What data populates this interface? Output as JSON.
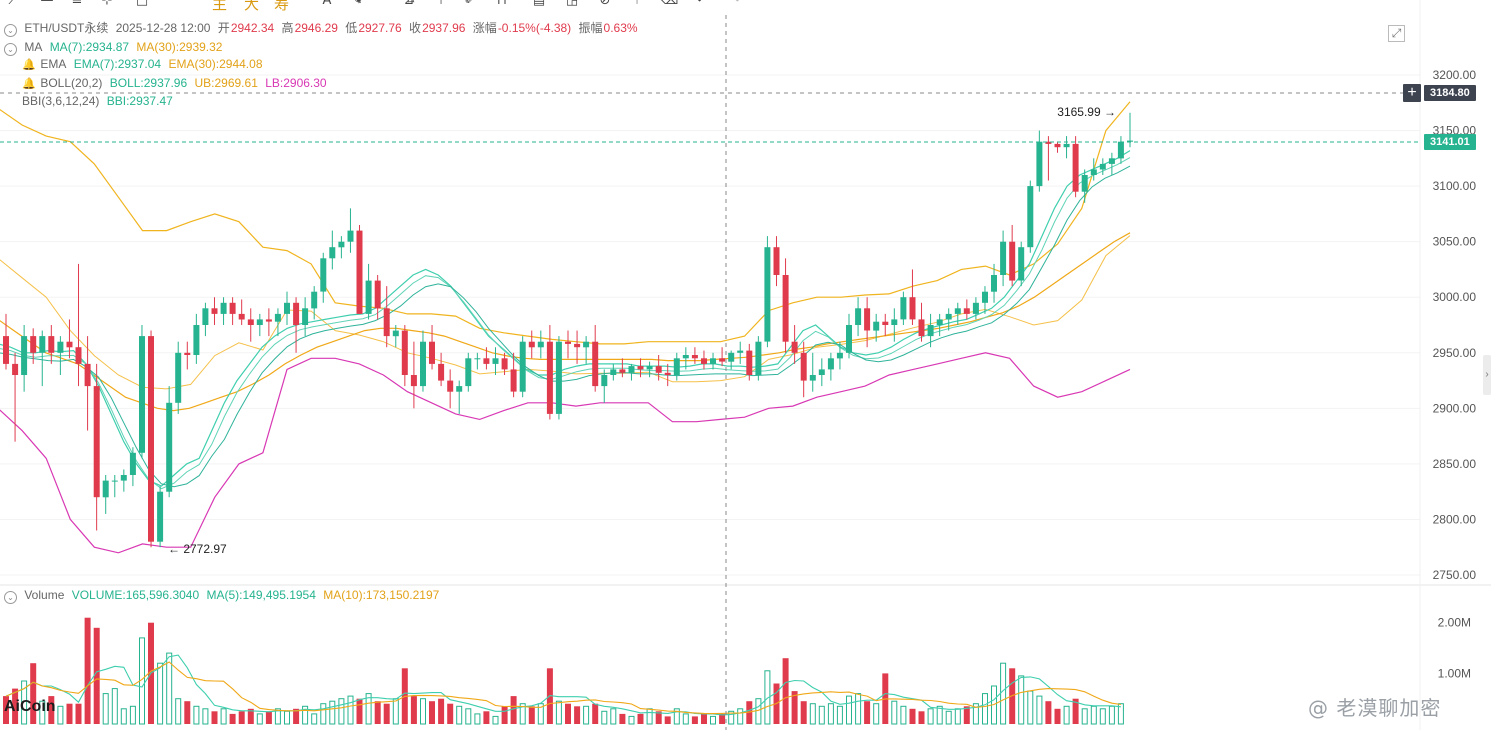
{
  "header": {
    "symbol": "ETH/USDT永续",
    "datetime": "2025-12-28 12:00",
    "open_label": "开",
    "open": "2942.34",
    "high_label": "高",
    "high": "2946.29",
    "low_label": "低",
    "low": "2927.76",
    "close_label": "收",
    "close": "2937.96",
    "change_label": "涨幅",
    "change": "-0.15%(-4.38)",
    "amplitude_label": "振幅",
    "amplitude": "0.63%"
  },
  "toolbar": {
    "icons": [
      "line-tool-icon",
      "horizontal-line-icon",
      "menu-lines-icon",
      "crosshair-icon",
      "rectangle-icon",
      "text-icon",
      "pen-icon",
      "measure-icon",
      "sparkle-icon",
      "bookmark-icon",
      "ruler-icon",
      "brush-icon",
      "magnet-icon",
      "calendar-icon",
      "chat-icon",
      "lock-icon",
      "fork-icon",
      "trash-icon",
      "undo-icon",
      "redo-icon"
    ],
    "cn_buttons": [
      "主",
      "大",
      "寿"
    ]
  },
  "indicators": {
    "ma": {
      "name": "MA",
      "v1": "MA(7):2934.87",
      "v2": "MA(30):2939.32"
    },
    "ema": {
      "name": "EMA",
      "v1": "EMA(7):2937.04",
      "v2": "EMA(30):2944.08"
    },
    "boll": {
      "name": "BOLL(20,2)",
      "v1": "BOLL:2937.96",
      "v2": "UB:2969.61",
      "v3": "LB:2906.30"
    },
    "bbi": {
      "name": "BBI(3,6,12,24)",
      "v1": "BBI:2937.47"
    }
  },
  "volume_header": {
    "name": "Volume",
    "v1": "VOLUME:165,596.3040",
    "v2": "MA(5):149,495.1954",
    "v3": "MA(10):173,150.2197"
  },
  "price_axis": {
    "ticks": [
      "3200.00",
      "3150.00",
      "3100.00",
      "3050.00",
      "3000.00",
      "2950.00",
      "2900.00",
      "2850.00",
      "2800.00",
      "2750.00"
    ],
    "crosshair_price": "3184.80",
    "last_price": "3141.01"
  },
  "volume_axis": {
    "ticks": [
      "2.00M",
      "1.00M"
    ]
  },
  "annotations": {
    "high_mark": "3165.99",
    "low_mark": "2772.97"
  },
  "logo": "AiCoin",
  "watermark": "@ 老漠聊加密",
  "colors": {
    "up": "#26b38f",
    "down": "#e03b4d",
    "ma_orange": "#f0a818",
    "boll_magenta": "#d838b4",
    "grid": "#f2f2f2"
  },
  "chart_data": {
    "type": "candlestick",
    "ylim": [
      2735,
      3222
    ],
    "vol_ylim": [
      0,
      2.35
    ],
    "candles": [
      [
        2965,
        2985,
        2935,
        2940
      ],
      [
        2940,
        2950,
        2870,
        2930
      ],
      [
        2930,
        2975,
        2915,
        2965
      ],
      [
        2965,
        2972,
        2940,
        2950
      ],
      [
        2950,
        2970,
        2920,
        2965
      ],
      [
        2965,
        2975,
        2940,
        2950
      ],
      [
        2950,
        2965,
        2930,
        2960
      ],
      [
        2960,
        2980,
        2945,
        2955
      ],
      [
        2955,
        3030,
        2920,
        2940
      ],
      [
        2940,
        2965,
        2880,
        2920
      ],
      [
        2920,
        2940,
        2790,
        2820
      ],
      [
        2820,
        2840,
        2805,
        2835
      ],
      [
        2835,
        2840,
        2820,
        2835
      ],
      [
        2835,
        2845,
        2825,
        2840
      ],
      [
        2840,
        2865,
        2830,
        2860
      ],
      [
        2860,
        2975,
        2855,
        2965
      ],
      [
        2965,
        2970,
        2775,
        2780
      ],
      [
        2780,
        2830,
        2775,
        2825
      ],
      [
        2825,
        2920,
        2820,
        2905
      ],
      [
        2905,
        2960,
        2895,
        2950
      ],
      [
        2950,
        2960,
        2935,
        2948
      ],
      [
        2948,
        2985,
        2940,
        2975
      ],
      [
        2975,
        2995,
        2965,
        2990
      ],
      [
        2990,
        3000,
        2975,
        2985
      ],
      [
        2985,
        3000,
        2975,
        2995
      ],
      [
        2995,
        3000,
        2975,
        2985
      ],
      [
        2985,
        2998,
        2975,
        2980
      ],
      [
        2980,
        2990,
        2960,
        2975
      ],
      [
        2975,
        2985,
        2965,
        2980
      ],
      [
        2980,
        2990,
        2965,
        2978
      ],
      [
        2978,
        2990,
        2965,
        2985
      ],
      [
        2985,
        3005,
        2975,
        2995
      ],
      [
        2995,
        3000,
        2950,
        2975
      ],
      [
        2975,
        3000,
        2965,
        2990
      ],
      [
        2990,
        3010,
        2980,
        3005
      ],
      [
        3005,
        3040,
        2995,
        3035
      ],
      [
        3035,
        3060,
        3025,
        3045
      ],
      [
        3045,
        3055,
        3035,
        3050
      ],
      [
        3050,
        3080,
        3040,
        3060
      ],
      [
        3060,
        3065,
        2985,
        2985
      ],
      [
        2985,
        3030,
        2980,
        3015
      ],
      [
        3015,
        3020,
        2980,
        2990
      ],
      [
        2990,
        3010,
        2955,
        2965
      ],
      [
        2965,
        2975,
        2955,
        2970
      ],
      [
        2970,
        2975,
        2920,
        2930
      ],
      [
        2930,
        2960,
        2900,
        2920
      ],
      [
        2920,
        2970,
        2915,
        2960
      ],
      [
        2960,
        2975,
        2935,
        2940
      ],
      [
        2940,
        2950,
        2920,
        2925
      ],
      [
        2925,
        2935,
        2900,
        2915
      ],
      [
        2915,
        2925,
        2895,
        2920
      ],
      [
        2920,
        2950,
        2915,
        2945
      ],
      [
        2945,
        2950,
        2935,
        2945
      ],
      [
        2945,
        2955,
        2935,
        2940
      ],
      [
        2940,
        2955,
        2930,
        2945
      ],
      [
        2945,
        2950,
        2930,
        2935
      ],
      [
        2935,
        2950,
        2910,
        2915
      ],
      [
        2915,
        2965,
        2910,
        2960
      ],
      [
        2960,
        2970,
        2945,
        2955
      ],
      [
        2955,
        2970,
        2945,
        2960
      ],
      [
        2960,
        2975,
        2890,
        2895
      ],
      [
        2895,
        2965,
        2890,
        2960
      ],
      [
        2960,
        2970,
        2945,
        2958
      ],
      [
        2958,
        2970,
        2940,
        2955
      ],
      [
        2955,
        2965,
        2940,
        2960
      ],
      [
        2960,
        2975,
        2915,
        2920
      ],
      [
        2920,
        2935,
        2905,
        2930
      ],
      [
        2930,
        2940,
        2925,
        2935
      ],
      [
        2935,
        2945,
        2928,
        2932
      ],
      [
        2932,
        2940,
        2925,
        2938
      ],
      [
        2938,
        2945,
        2928,
        2935
      ],
      [
        2935,
        2942,
        2928,
        2938
      ],
      [
        2938,
        2948,
        2925,
        2932
      ],
      [
        2932,
        2940,
        2920,
        2930
      ],
      [
        2930,
        2950,
        2925,
        2945
      ],
      [
        2945,
        2955,
        2935,
        2948
      ],
      [
        2948,
        2955,
        2940,
        2945
      ],
      [
        2945,
        2952,
        2935,
        2940
      ],
      [
        2940,
        2950,
        2935,
        2945
      ],
      [
        2945,
        2955,
        2938,
        2942
      ],
      [
        2942,
        2952,
        2935,
        2950
      ],
      [
        2950,
        2960,
        2940,
        2952
      ],
      [
        2952,
        2958,
        2925,
        2930
      ],
      [
        2930,
        2965,
        2925,
        2960
      ],
      [
        2960,
        3055,
        2955,
        3045
      ],
      [
        3045,
        3055,
        3010,
        3020
      ],
      [
        3020,
        3035,
        2950,
        2960
      ],
      [
        2960,
        2975,
        2940,
        2950
      ],
      [
        2950,
        2960,
        2910,
        2925
      ],
      [
        2925,
        2950,
        2915,
        2930
      ],
      [
        2930,
        2945,
        2920,
        2935
      ],
      [
        2935,
        2950,
        2925,
        2945
      ],
      [
        2945,
        2960,
        2935,
        2950
      ],
      [
        2950,
        2985,
        2945,
        2975
      ],
      [
        2975,
        3000,
        2965,
        2990
      ],
      [
        2990,
        3000,
        2955,
        2970
      ],
      [
        2970,
        2985,
        2960,
        2978
      ],
      [
        2978,
        2985,
        2965,
        2975
      ],
      [
        2975,
        2990,
        2960,
        2980
      ],
      [
        2980,
        3005,
        2975,
        3000
      ],
      [
        3000,
        3025,
        2975,
        2980
      ],
      [
        2980,
        2995,
        2960,
        2965
      ],
      [
        2965,
        2985,
        2955,
        2975
      ],
      [
        2975,
        2985,
        2965,
        2980
      ],
      [
        2980,
        2990,
        2970,
        2985
      ],
      [
        2985,
        2995,
        2975,
        2990
      ],
      [
        2990,
        2998,
        2980,
        2985
      ],
      [
        2985,
        3000,
        2980,
        2995
      ],
      [
        2995,
        3010,
        2985,
        3005
      ],
      [
        3005,
        3030,
        2995,
        3020
      ],
      [
        3020,
        3060,
        3010,
        3050
      ],
      [
        3050,
        3065,
        3010,
        3015
      ],
      [
        3015,
        3050,
        3010,
        3045
      ],
      [
        3045,
        3105,
        3040,
        3100
      ],
      [
        3100,
        3150,
        3095,
        3140
      ],
      [
        3140,
        3145,
        3105,
        3138
      ],
      [
        3138,
        3140,
        3130,
        3135
      ],
      [
        3135,
        3145,
        3125,
        3138
      ],
      [
        3138,
        3145,
        3090,
        3095
      ],
      [
        3095,
        3115,
        3085,
        3110
      ],
      [
        3110,
        3125,
        3105,
        3115
      ],
      [
        3115,
        3125,
        3110,
        3120
      ],
      [
        3120,
        3130,
        3110,
        3125
      ],
      [
        3125,
        3145,
        3120,
        3140
      ],
      [
        3140,
        3166,
        3135,
        3141
      ]
    ],
    "volume": [
      0.55,
      0.7,
      0.85,
      1.2,
      0.45,
      0.55,
      0.35,
      0.4,
      0.4,
      2.1,
      1.9,
      0.6,
      0.7,
      0.3,
      0.35,
      1.7,
      2.0,
      1.2,
      1.4,
      0.5,
      0.45,
      0.35,
      0.3,
      0.25,
      0.3,
      0.2,
      0.25,
      0.3,
      0.2,
      0.25,
      0.3,
      0.25,
      0.3,
      0.35,
      0.2,
      0.4,
      0.45,
      0.5,
      0.55,
      0.5,
      0.6,
      0.45,
      0.4,
      0.5,
      1.1,
      0.55,
      0.5,
      0.45,
      0.5,
      0.4,
      0.35,
      0.3,
      0.2,
      0.25,
      0.15,
      0.35,
      0.55,
      0.4,
      0.35,
      0.4,
      1.1,
      0.45,
      0.4,
      0.35,
      0.35,
      0.4,
      0.25,
      0.3,
      0.2,
      0.15,
      0.2,
      0.3,
      0.25,
      0.15,
      0.3,
      0.2,
      0.15,
      0.2,
      0.15,
      0.2,
      0.25,
      0.3,
      0.45,
      0.5,
      1.05,
      0.8,
      1.3,
      0.65,
      0.45,
      0.4,
      0.35,
      0.4,
      0.35,
      0.55,
      0.6,
      0.45,
      0.4,
      1.0,
      0.45,
      0.35,
      0.3,
      0.25,
      0.3,
      0.35,
      0.25,
      0.3,
      0.35,
      0.4,
      0.6,
      0.75,
      1.2,
      1.1,
      0.95,
      0.65,
      0.55,
      0.45,
      0.3,
      0.35,
      0.5,
      0.3,
      0.35,
      0.3,
      0.35,
      0.4
    ],
    "ma_series": [
      {
        "name": "MA(7)",
        "color": "#3fcfae",
        "values": [
          2958,
          2955,
          2950,
          2950,
          2952,
          2951,
          2952,
          2940,
          2920,
          2895,
          2870,
          2850,
          2835,
          2830,
          2840,
          2850,
          2855,
          2880,
          2905,
          2925,
          2940,
          2955,
          2965,
          2972,
          2976,
          2978,
          2980,
          2982,
          2984,
          2985,
          2990,
          3000,
          3010,
          3020,
          3025,
          3020,
          3010,
          2995,
          2980,
          2965,
          2955,
          2945,
          2935,
          2930,
          2930,
          2935,
          2938,
          2940,
          2940,
          2940,
          2940,
          2938,
          2938,
          2938,
          2937,
          2938,
          2940,
          2940,
          2938,
          2938,
          2937,
          2938,
          2940,
          2955,
          2970,
          2975,
          2965,
          2955,
          2950,
          2948,
          2950,
          2955,
          2962,
          2968,
          2972,
          2975,
          2978,
          2980,
          2985,
          2990,
          3000,
          3015,
          3030,
          3055,
          3080,
          3100,
          3110,
          3115,
          3120,
          3125,
          3132
        ]
      },
      {
        "name": "MA(30)",
        "color": "#f0a818",
        "values": [
          2980,
          2970,
          2960,
          2950,
          2945,
          2940,
          2930,
          2920,
          2910,
          2905,
          2900,
          2898,
          2900,
          2905,
          2910,
          2915,
          2922,
          2930,
          2940,
          2948,
          2955,
          2960,
          2965,
          2970,
          2972,
          2972,
          2970,
          2968,
          2965,
          2960,
          2955,
          2950,
          2947,
          2945,
          2944,
          2944,
          2944,
          2944,
          2944,
          2944,
          2944,
          2944,
          2943,
          2943,
          2943,
          2944,
          2945,
          2946,
          2948,
          2950,
          2953,
          2955,
          2958,
          2960,
          2962,
          2964,
          2966,
          2968,
          2970,
          2972,
          2975,
          2978,
          2982,
          2986,
          2992,
          3000,
          3010,
          3020,
          3030,
          3040,
          3050,
          3058
        ]
      }
    ],
    "boll": {
      "upper": [
        3170,
        3155,
        3145,
        3140,
        3120,
        3090,
        3060,
        3060,
        3068,
        3075,
        3068,
        3045,
        3042,
        3030,
        2995,
        2992,
        2990,
        2985,
        2985,
        2983,
        2972,
        2968,
        2965,
        2962,
        2960,
        2958,
        2958,
        2960,
        2960,
        2960,
        2960,
        2965,
        2988,
        2995,
        3000,
        3000,
        3002,
        3003,
        3010,
        3015,
        3025,
        3028,
        3020,
        3030,
        3048,
        3080,
        3150,
        3176
      ],
      "lower": [
        2900,
        2880,
        2855,
        2800,
        2775,
        2770,
        2778,
        2775,
        2775,
        2820,
        2850,
        2860,
        2935,
        2945,
        2945,
        2940,
        2930,
        2915,
        2905,
        2895,
        2890,
        2898,
        2905,
        2905,
        2902,
        2905,
        2905,
        2905,
        2888,
        2888,
        2890,
        2892,
        2900,
        2902,
        2910,
        2915,
        2920,
        2930,
        2935,
        2940,
        2945,
        2950,
        2945,
        2920,
        2910,
        2915,
        2925,
        2935
      ]
    }
  }
}
